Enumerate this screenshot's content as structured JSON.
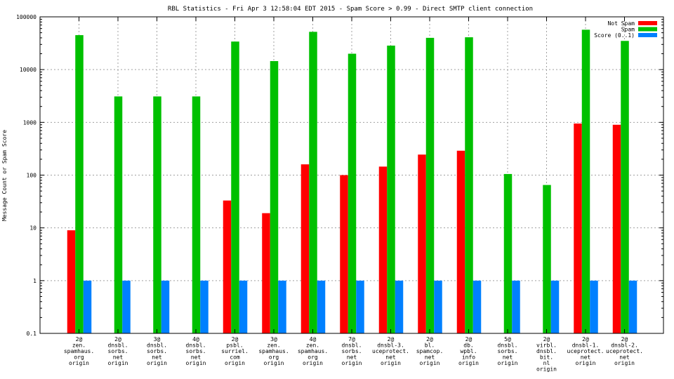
{
  "chart_data": {
    "type": "bar",
    "title": "RBL Statistics - Fri Apr  3 12:58:04 EDT 2015 - Spam Score > 0.99 - Direct SMTP client connection",
    "xlabel": "",
    "ylabel": "Message Count or Spam Score",
    "yscale": "log",
    "ylim": [
      0.1,
      100000
    ],
    "y_ticks": [
      0.1,
      1,
      10,
      100,
      1000,
      10000,
      100000
    ],
    "y_tick_labels": [
      "0.1",
      "1",
      "10",
      "100",
      "1000",
      "10000",
      "100000"
    ],
    "grid": true,
    "legend_position": "top-right",
    "categories": [
      [
        "2@",
        "zen.",
        "spamhaus.",
        "org",
        "origin"
      ],
      [
        "2@",
        "dnsbl.",
        "sorbs.",
        "net",
        "origin"
      ],
      [
        "3@",
        "dnsbl.",
        "sorbs.",
        "net",
        "origin"
      ],
      [
        "4@",
        "dnsbl.",
        "sorbs.",
        "net",
        "origin"
      ],
      [
        "2@",
        "psbl.",
        "surriel.",
        "com",
        "origin"
      ],
      [
        "3@",
        "zen.",
        "spamhaus.",
        "org",
        "origin"
      ],
      [
        "4@",
        "zen.",
        "spamhaus.",
        "org",
        "origin"
      ],
      [
        "7@",
        "dnsbl.",
        "sorbs.",
        "net",
        "origin"
      ],
      [
        "2@",
        "dnsbl-3.",
        "uceprotect.",
        "net",
        "origin"
      ],
      [
        "2@",
        "bl.",
        "spamcop.",
        "net",
        "origin"
      ],
      [
        "2@",
        "db.",
        "wpbl.",
        "info",
        "origin"
      ],
      [
        "5@",
        "dnsbl.",
        "sorbs.",
        "net",
        "origin"
      ],
      [
        "2@",
        "virbl.",
        "dnsbl.",
        "bit.",
        "nl",
        "origin"
      ],
      [
        "2@",
        "dnsbl-1.",
        "uceprotect.",
        "net",
        "origin"
      ],
      [
        "2@",
        "dnsbl-2.",
        "uceprotect.",
        "net",
        "origin"
      ]
    ],
    "series": [
      {
        "name": "Not Spam",
        "color": "#ff0000",
        "values": [
          9,
          null,
          null,
          null,
          33,
          19,
          160,
          100,
          145,
          245,
          290,
          null,
          null,
          950,
          900
        ]
      },
      {
        "name": "Spam",
        "color": "#00c000",
        "values": [
          45000,
          3100,
          3100,
          3100,
          34000,
          14500,
          52000,
          20000,
          28500,
          40000,
          41000,
          105,
          65,
          57000,
          35000
        ]
      },
      {
        "name": "Score (0..1)",
        "color": "#0080ff",
        "values": [
          1,
          1,
          1,
          1,
          1,
          1,
          1,
          1,
          1,
          1,
          1,
          1,
          1,
          1,
          1
        ]
      }
    ]
  }
}
